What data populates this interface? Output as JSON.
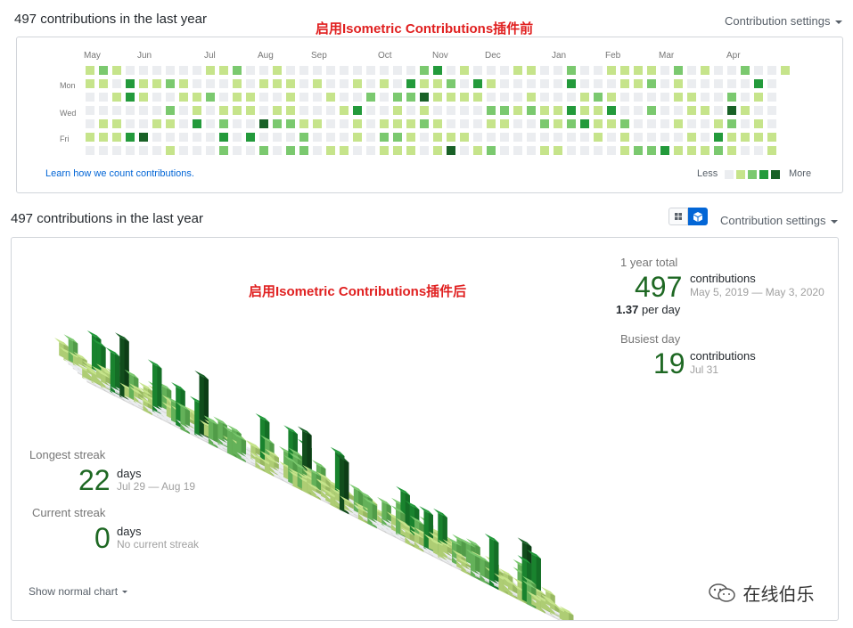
{
  "top": {
    "title": "497 contributions in the last year",
    "annotation": "启用Isometric Contributions插件前",
    "settings_label": "Contribution settings",
    "months": [
      "May",
      "Jun",
      "Jul",
      "Aug",
      "Sep",
      "Oct",
      "Nov",
      "Dec",
      "Jan",
      "Feb",
      "Mar",
      "Apr"
    ],
    "days": [
      "Mon",
      "Wed",
      "Fri"
    ],
    "learn_link": "Learn how we count contributions.",
    "legend_less": "Less",
    "legend_more": "More",
    "colors": [
      "#ebedf0",
      "#c6e48b",
      "#7bc96f",
      "#239a3b",
      "#196127"
    ]
  },
  "bottom": {
    "title": "497 contributions in the last year",
    "annotation": "启用Isometric Contributions插件后",
    "settings_label": "Contribution settings",
    "toggle": {
      "squares_icon": "grid-icon",
      "cube_icon": "cube-icon"
    },
    "year_total_label": "1 year total",
    "year_total_value": "497",
    "year_total_unit": "contributions",
    "year_total_range": "May 5, 2019 — May 3, 2020",
    "per_day_value": "1.37",
    "per_day_unit": "per day",
    "busiest_label": "Busiest day",
    "busiest_value": "19",
    "busiest_unit": "contributions",
    "busiest_date": "Jul 31",
    "longest_label": "Longest streak",
    "longest_value": "22",
    "longest_unit": "days",
    "longest_range": "Jul 29 — Aug 19",
    "current_label": "Current streak",
    "current_value": "0",
    "current_unit": "days",
    "current_range": "No current streak",
    "show_normal": "Show normal chart"
  },
  "watermark": {
    "text": "在线伯乐",
    "icon": "wechat-icon"
  }
}
